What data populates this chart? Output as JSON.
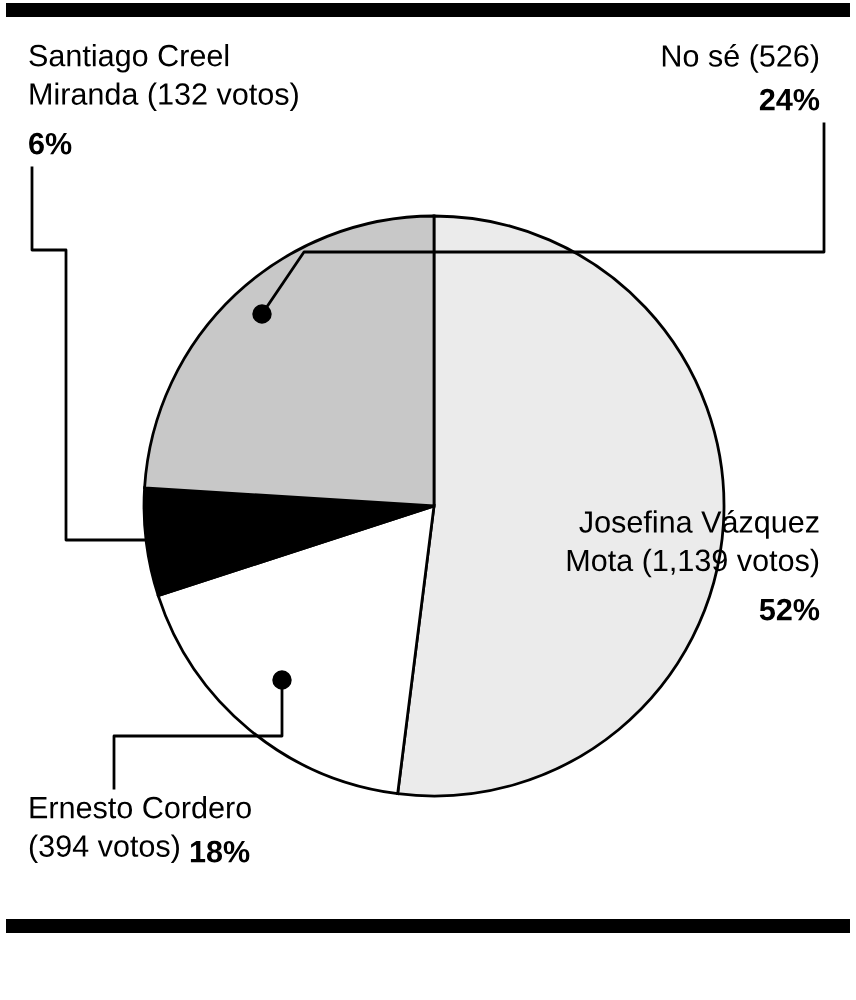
{
  "chart_data": {
    "type": "pie",
    "categories": [
      "Josefina Vázquez\nMota (1,139 votos)",
      "Ernesto Cordero\n(394 votos)",
      "Santiago Creel\nMiranda (132 votos)",
      "No sé (526)"
    ],
    "values": [
      52,
      18,
      6,
      24
    ],
    "colors": [
      "#ebebeb",
      "#ffffff",
      "#000000",
      "#c8c8c8"
    ],
    "value_labels": [
      "52%",
      "18%",
      "6%",
      "24%"
    ]
  }
}
